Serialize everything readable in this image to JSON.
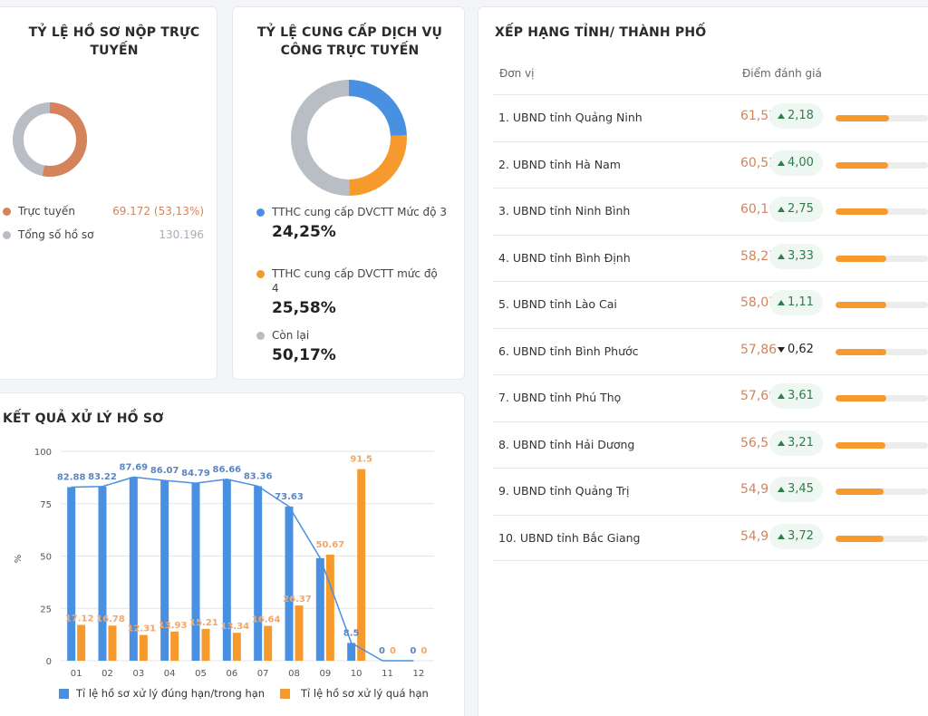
{
  "online_card": {
    "title": "TỶ LỆ HỒ SƠ NỘP TRỰC TUYẾN",
    "online_fraction": 0.5313,
    "legend": [
      {
        "label": "Trực tuyến",
        "value": "69.172 (53,13%)",
        "color": "#d4835a"
      },
      {
        "label": "Tổng số hồ sơ",
        "value": "130.196",
        "color": "#b9bdc4"
      }
    ]
  },
  "service_card": {
    "title": "TỶ LỆ CUNG CẤP DỊCH VỤ CÔNG TRỰC TUYẾN",
    "slices": [
      {
        "label": "TTHC cung cấp DVCTT Mức độ 3",
        "value": "24,25%",
        "fraction": 0.2425,
        "color": "#4a90e2"
      },
      {
        "label": "TTHC cung cấp DVCTT mức độ 4",
        "value": "25,58%",
        "fraction": 0.2558,
        "color": "#f79a2d"
      },
      {
        "label": "Còn lại",
        "value": "50,17%",
        "fraction": 0.5017,
        "color": "#b9bdc4"
      }
    ]
  },
  "ranking": {
    "title": "XẾP HẠNG TỈNH/ THÀNH PHỐ",
    "col_unit": "Đơn vị",
    "col_score": "Điểm đánh giá",
    "max_score": 100,
    "rows": [
      {
        "name": "1. UBND tỉnh Quảng Ninh",
        "score": "61,52",
        "delta": "2,18",
        "dir": "up",
        "bar": 0.58
      },
      {
        "name": "2. UBND tỉnh Hà Nam",
        "score": "60,52",
        "delta": "4,00",
        "dir": "up",
        "bar": 0.57
      },
      {
        "name": "3. UBND tỉnh Ninh Bình",
        "score": "60,16",
        "delta": "2,75",
        "dir": "up",
        "bar": 0.57
      },
      {
        "name": "4. UBND tỉnh Bình Định",
        "score": "58,27",
        "delta": "3,33",
        "dir": "up",
        "bar": 0.55
      },
      {
        "name": "5. UBND tỉnh Lào Cai",
        "score": "58,07",
        "delta": "1,11",
        "dir": "up",
        "bar": 0.55
      },
      {
        "name": "6. UBND tỉnh Bình Phước",
        "score": "57,86",
        "delta": "0,62",
        "dir": "down",
        "bar": 0.55
      },
      {
        "name": "7. UBND tỉnh Phú Thọ",
        "score": "57,69",
        "delta": "3,61",
        "dir": "up",
        "bar": 0.55
      },
      {
        "name": "8. UBND tỉnh Hải Dương",
        "score": "56,56",
        "delta": "3,21",
        "dir": "up",
        "bar": 0.54
      },
      {
        "name": "9. UBND tỉnh Quảng Trị",
        "score": "54,9",
        "delta": "3,45",
        "dir": "up",
        "bar": 0.52
      },
      {
        "name": "10. UBND tỉnh Bắc Giang",
        "score": "54,9",
        "delta": "3,72",
        "dir": "up",
        "bar": 0.52
      }
    ]
  },
  "result_card": {
    "title": "KẾT QUẢ XỬ LÝ HỒ SƠ"
  },
  "chart_data": {
    "type": "bar",
    "categories": [
      "01",
      "02",
      "03",
      "04",
      "05",
      "06",
      "07",
      "08",
      "09",
      "10",
      "11",
      "12"
    ],
    "series": [
      {
        "name": "Tỉ lệ hồ sơ xử lý đúng hạn/trong hạn",
        "color": "#4a90e2",
        "values": [
          82.88,
          83.22,
          87.69,
          86.07,
          84.79,
          86.66,
          83.36,
          73.63,
          49,
          8.5,
          0,
          0
        ],
        "labels": [
          "82.88",
          "83.22",
          "87.69",
          "86.07",
          "84.79",
          "86.66",
          "83.36",
          "73.63",
          "",
          "8.5",
          "0",
          "0"
        ]
      },
      {
        "name": "Tỉ lệ hồ sơ xử lý quá hạn",
        "color": "#f79a2d",
        "values": [
          17.12,
          16.78,
          12.31,
          13.93,
          15.21,
          13.34,
          16.64,
          26.37,
          50.67,
          91.5,
          0,
          0
        ],
        "labels": [
          "17.12",
          "16.78",
          "12.31",
          "13.93",
          "15.21",
          "13.34",
          "16.64",
          "26.37",
          "50.67",
          "91.5",
          "0",
          "0"
        ]
      }
    ],
    "line_series": {
      "values": [
        82.88,
        83.22,
        87.69,
        86.07,
        84.79,
        86.66,
        83.36,
        73.63,
        49,
        8.5,
        0,
        0
      ],
      "color": "#4a90e2"
    },
    "ylabel": "%",
    "ylim": [
      0,
      100
    ],
    "yticks": [
      "0",
      "25",
      "50",
      "75",
      "100"
    ],
    "grid": true,
    "legend_position": "bottom"
  }
}
